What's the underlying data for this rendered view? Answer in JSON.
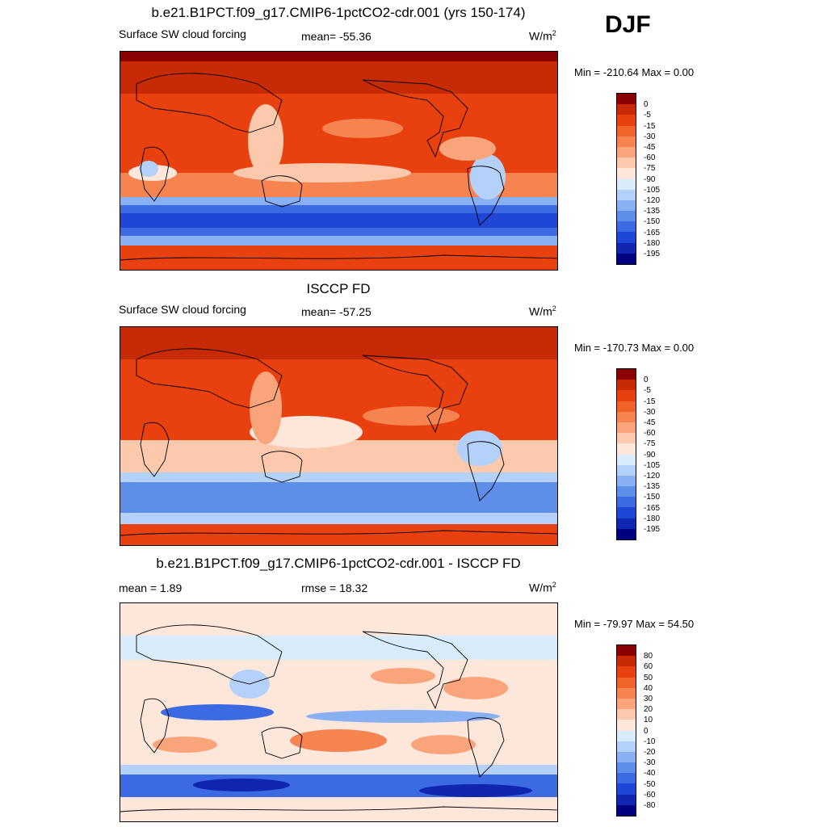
{
  "season": "DJF",
  "colors": {
    "panels_1_2": [
      "#8b0000",
      "#c72a06",
      "#e8400e",
      "#f06428",
      "#f58450",
      "#f9a47a",
      "#fcc9ad",
      "#fde7da",
      "#d9ecfc",
      "#b3d1f9",
      "#89b0f2",
      "#5f8ee8",
      "#3b6ae2",
      "#1f46d4",
      "#1025b0",
      "#000080"
    ],
    "panel_3": [
      "#8b0000",
      "#c72a06",
      "#e8400e",
      "#f06428",
      "#f58450",
      "#f9a47a",
      "#fcc9ad",
      "#fde7da",
      "#d9ecfc",
      "#b3d1f9",
      "#89b0f2",
      "#5f8ee8",
      "#3b6ae2",
      "#1f46d4",
      "#1025b0",
      "#000080"
    ]
  },
  "panels": [
    {
      "title": "b.e21.B1PCT.f09_g17.CMIP6-1pctCO2-cdr.001 (yrs 150-174)",
      "left_label": "Surface SW cloud forcing",
      "center_label": "mean= -55.36",
      "units": "W/m",
      "units_sup": "2",
      "minmax": "Min = -210.64 Max =    0.00",
      "levels": [
        "0",
        "-5",
        "-15",
        "-30",
        "-45",
        "-60",
        "-75",
        "-90",
        "-105",
        "-120",
        "-135",
        "-150",
        "-165",
        "-180",
        "-195"
      ]
    },
    {
      "title": "ISCCP FD",
      "left_label": "Surface SW cloud forcing",
      "center_label": "mean= -57.25",
      "units": "W/m",
      "units_sup": "2",
      "minmax": "Min = -170.73 Max =    0.00",
      "levels": [
        "0",
        "-5",
        "-15",
        "-30",
        "-45",
        "-60",
        "-75",
        "-90",
        "-105",
        "-120",
        "-135",
        "-150",
        "-165",
        "-180",
        "-195"
      ]
    },
    {
      "title": "b.e21.B1PCT.f09_g17.CMIP6-1pctCO2-cdr.001 - ISCCP FD",
      "left_label": "mean =   1.89",
      "center_label": "rmse =  18.32",
      "units": "W/m",
      "units_sup": "2",
      "minmax": "Min = -79.97 Max =  54.50",
      "levels": [
        "80",
        "60",
        "50",
        "40",
        "30",
        "20",
        "10",
        "0",
        "-10",
        "-20",
        "-30",
        "-40",
        "-50",
        "-60",
        "-80"
      ]
    }
  ]
}
